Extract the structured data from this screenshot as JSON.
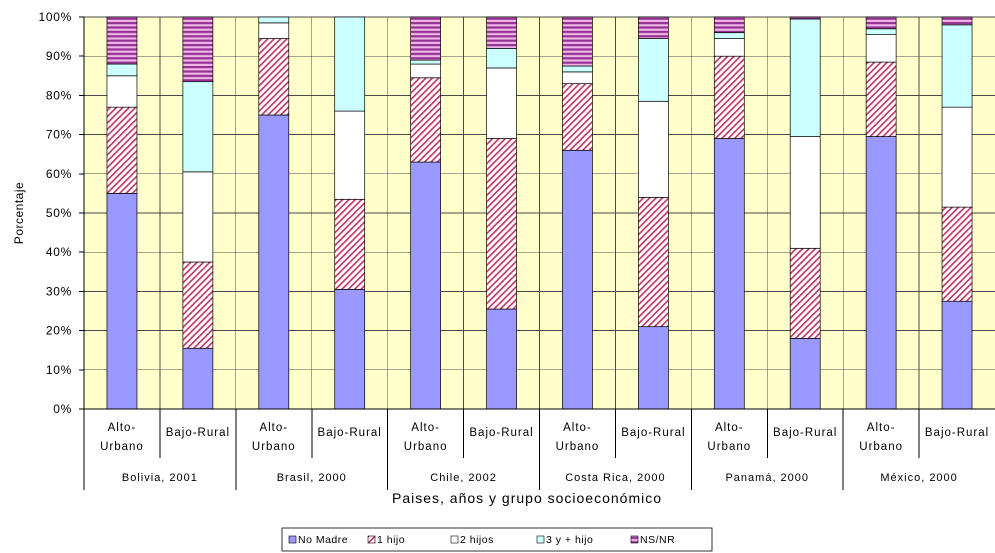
{
  "chart_data": {
    "type": "bar",
    "stacked": true,
    "xlabel": "Paises, años y grupo socioeconómico",
    "ylabel": "Porcentaje",
    "ylim": [
      0,
      100
    ],
    "yticks": [
      "0%",
      "10%",
      "20%",
      "30%",
      "40%",
      "50%",
      "60%",
      "70%",
      "80%",
      "90%",
      "100%"
    ],
    "grid": true,
    "legend_position": "bottom",
    "plot_background": "#FFFFCC",
    "groups": [
      {
        "name": "Bolivia, 2001",
        "categories": [
          "Alto-Urbano",
          "Bajo-Rural"
        ]
      },
      {
        "name": "Brasil, 2000",
        "categories": [
          "Alto-Urbano",
          "Bajo-Rural"
        ]
      },
      {
        "name": "Chile, 2002",
        "categories": [
          "Alto-Urbano",
          "Bajo-Rural"
        ]
      },
      {
        "name": "Costa Rica, 2000",
        "categories": [
          "Alto-Urbano",
          "Bajo-Rural"
        ]
      },
      {
        "name": "Panamá, 2000",
        "categories": [
          "Alto-Urbano",
          "Bajo-Rural"
        ]
      },
      {
        "name": "México, 2000",
        "categories": [
          "Alto-Urbano",
          "Bajo-Rural"
        ]
      }
    ],
    "categories": [
      "Alto-Urbano",
      "Bajo-Rural",
      "Alto-Urbano",
      "Bajo-Rural",
      "Alto-Urbano",
      "Bajo-Rural",
      "Alto-Urbano",
      "Bajo-Rural",
      "Alto-Urbano",
      "Bajo-Rural",
      "Alto-Urbano",
      "Bajo-Rural"
    ],
    "series": [
      {
        "name": "No Madre",
        "color": "#9999FF",
        "pattern": "solid",
        "values": [
          55,
          15.5,
          75,
          30.5,
          63,
          25.5,
          66,
          21,
          69,
          18,
          69.5,
          27.5
        ]
      },
      {
        "name": "1 hijo",
        "color": "#C03A6A",
        "pattern": "diagonal-hatch",
        "pattern_background": "#FFFFFF",
        "values": [
          22,
          22,
          19.5,
          23,
          21.5,
          43.5,
          17,
          33,
          21,
          23,
          19,
          24
        ]
      },
      {
        "name": "2 hijos",
        "color": "#FFFFFF",
        "pattern": "solid",
        "values": [
          8,
          23,
          4,
          22.5,
          3.5,
          18,
          3,
          24.5,
          4.5,
          28.5,
          7,
          25.5
        ]
      },
      {
        "name": "3 y + hijo",
        "color": "#CCFFFF",
        "pattern": "solid",
        "values": [
          3,
          23,
          1.5,
          24,
          1,
          5,
          1.5,
          16,
          1.5,
          30,
          1.5,
          21
        ]
      },
      {
        "name": "NS/NR",
        "color": "#933393",
        "pattern": "horizontal-stripes",
        "pattern_background": "#F0B4E6",
        "values": [
          12,
          16.5,
          0,
          0,
          11,
          8,
          12.5,
          5.5,
          4,
          0.5,
          3,
          2
        ]
      }
    ]
  }
}
